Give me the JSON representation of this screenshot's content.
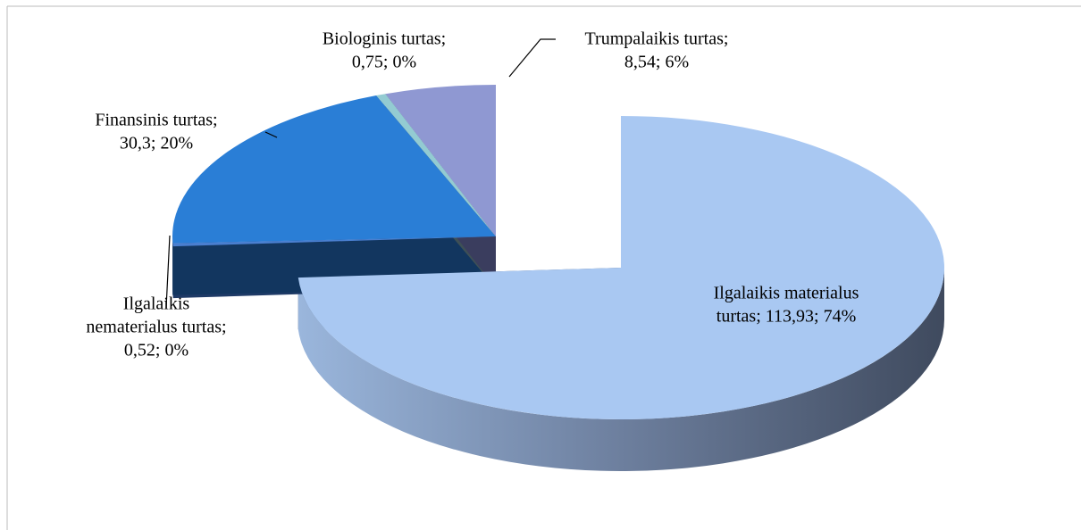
{
  "chart_data": {
    "type": "pie",
    "values": [
      113.93,
      0.52,
      30.3,
      0.75,
      8.54
    ],
    "value_labels": [
      [
        "Ilgalaikis materialus",
        "turtas; 113,93; 74%"
      ],
      [
        "Ilgalaikis",
        "nematerialus turtas;",
        "0,52; 0%"
      ],
      [
        "Finansinis turtas;",
        "30,3; 20%"
      ],
      [
        "Biologinis turtas;",
        "0,75; 0%"
      ],
      [
        "Trumpalaikis turtas;",
        "8,54; 6%"
      ]
    ],
    "colors": [
      "#a9c8f2",
      "#4a7fd0",
      "#2a7ed6",
      "#93cbd2",
      "#8f98d2"
    ]
  }
}
